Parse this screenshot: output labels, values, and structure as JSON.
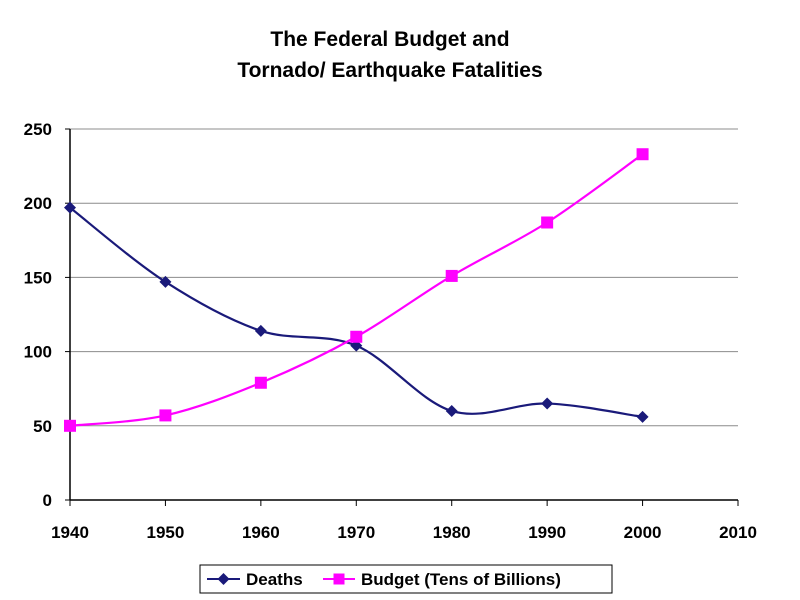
{
  "chart_data": {
    "type": "line",
    "title_lines": [
      "The Federal Budget and",
      "Tornado/ Earthquake Fatalities"
    ],
    "xlabel": "",
    "ylabel": "",
    "x": [
      1940,
      1950,
      1960,
      1970,
      1980,
      1990,
      2000
    ],
    "xlim": [
      1940,
      2010
    ],
    "xticks": [
      1940,
      1950,
      1960,
      1970,
      1980,
      1990,
      2000,
      2010
    ],
    "ylim": [
      0,
      250
    ],
    "yticks": [
      0,
      50,
      100,
      150,
      200,
      250
    ],
    "grid": "horizontal",
    "legend_position": "bottom",
    "series": [
      {
        "name": "Deaths",
        "color": "#1a1a7a",
        "marker": "diamond",
        "values": [
          197,
          147,
          114,
          104,
          60,
          65,
          56
        ]
      },
      {
        "name": "Budget (Tens of Billions)",
        "color": "#ff00ff",
        "marker": "square",
        "values": [
          50,
          57,
          79,
          110,
          151,
          187,
          233
        ]
      }
    ]
  }
}
